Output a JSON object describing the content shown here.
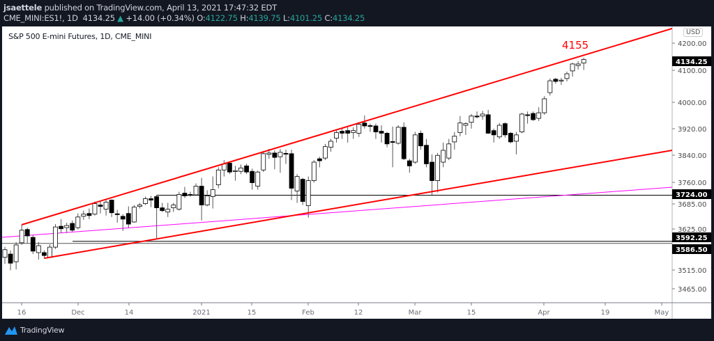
{
  "header": {
    "author": "jsaettele",
    "published": "published on TradingView.com, April 13, 2021 17:47:32 EDT",
    "symbol": "CME_MINI:ES1!, 1D",
    "last": "4134.25",
    "change": "+14.00 (+0.34%)",
    "o_label": "O:",
    "o": "4122.75",
    "h_label": "H:",
    "h": "4139.75",
    "l_label": "L:",
    "l": "4101.25",
    "c_label": "C:",
    "c": "4134.25",
    "change_icon": "triangle-up-icon"
  },
  "chart_title": "S&P 500 E-mini Futures, 1D, CME_MINI",
  "currency": "USD",
  "annotation": "4155",
  "colors": {
    "up_body": "#ffffff",
    "down_body": "#000000",
    "trendline": "#ff0000",
    "magenta_line": "#ff00ff",
    "ohlc_text": "#26a69a",
    "header_bg": "#131722"
  },
  "footer": {
    "brand": "TradingView"
  },
  "chart_data": {
    "type": "candlestick",
    "scale": "log",
    "grid": false,
    "x_ticks": [
      "16",
      "Dec",
      "14",
      "2021",
      "15",
      "Feb",
      "12",
      "Mar",
      "15",
      "Apr",
      "19",
      "May"
    ],
    "y_ticks": [
      "4200.00",
      "4100.00",
      "4000.00",
      "3920.00",
      "3840.00",
      "3760.00",
      "3685.00",
      "3625.00",
      "3515.00",
      "3465.00"
    ],
    "price_labels": [
      "4134.25",
      "3724.00",
      "3592.25",
      "3586.50"
    ],
    "horizontal_levels": [
      3724.0,
      3592.25,
      3586.5
    ],
    "candles_ohlc": [
      [
        3550,
        3579,
        3532,
        3571
      ],
      [
        3559,
        3569,
        3515,
        3534
      ],
      [
        3538,
        3592,
        3517,
        3584
      ],
      [
        3590,
        3640,
        3584,
        3625
      ],
      [
        3627,
        3632,
        3588,
        3609
      ],
      [
        3605,
        3611,
        3559,
        3567
      ],
      [
        3563,
        3592,
        3544,
        3582
      ],
      [
        3563,
        3569,
        3546,
        3555
      ],
      [
        3550,
        3586,
        3548,
        3578
      ],
      [
        3578,
        3642,
        3573,
        3634
      ],
      [
        3636,
        3656,
        3617,
        3629
      ],
      [
        3632,
        3646,
        3617,
        3638
      ],
      [
        3644,
        3652,
        3621,
        3625
      ],
      [
        3632,
        3672,
        3627,
        3662
      ],
      [
        3664,
        3680,
        3654,
        3670
      ],
      [
        3672,
        3686,
        3656,
        3666
      ],
      [
        3670,
        3706,
        3666,
        3700
      ],
      [
        3696,
        3706,
        3672,
        3692
      ],
      [
        3684,
        3710,
        3666,
        3704
      ],
      [
        3710,
        3712,
        3662,
        3674
      ],
      [
        3671,
        3682,
        3646,
        3669
      ],
      [
        3664,
        3670,
        3623,
        3656
      ],
      [
        3672,
        3692,
        3632,
        3642
      ],
      [
        3648,
        3696,
        3646,
        3690
      ],
      [
        3692,
        3702,
        3686,
        3696
      ],
      [
        3700,
        3720,
        3696,
        3714
      ],
      [
        3714,
        3722,
        3690,
        3710
      ],
      [
        3720,
        3725,
        3601,
        3688
      ],
      [
        3688,
        3702,
        3676,
        3680
      ],
      [
        3676,
        3702,
        3662,
        3684
      ],
      [
        3688,
        3702,
        3676,
        3696
      ],
      [
        3684,
        3734,
        3680,
        3726
      ],
      [
        3730,
        3748,
        3716,
        3722
      ],
      [
        3726,
        3734,
        3720,
        3725
      ],
      [
        3725,
        3758,
        3722,
        3750
      ],
      [
        3750,
        3774,
        3652,
        3696
      ],
      [
        3696,
        3738,
        3692,
        3722
      ],
      [
        3720,
        3778,
        3686,
        3740
      ],
      [
        3754,
        3805,
        3744,
        3797
      ],
      [
        3797,
        3826,
        3778,
        3815
      ],
      [
        3817,
        3822,
        3785,
        3791
      ],
      [
        3794,
        3809,
        3766,
        3795
      ],
      [
        3793,
        3813,
        3785,
        3803
      ],
      [
        3809,
        3815,
        3785,
        3791
      ],
      [
        3793,
        3801,
        3740,
        3760
      ],
      [
        3750,
        3795,
        3740,
        3791
      ],
      [
        3797,
        3853,
        3791,
        3845
      ],
      [
        3843,
        3859,
        3830,
        3847
      ],
      [
        3847,
        3855,
        3799,
        3834
      ],
      [
        3836,
        3859,
        3789,
        3849
      ],
      [
        3846,
        3857,
        3815,
        3844
      ],
      [
        3845,
        3857,
        3710,
        3744
      ],
      [
        3736,
        3785,
        3702,
        3778
      ],
      [
        3770,
        3774,
        3696,
        3706
      ],
      [
        3694,
        3778,
        3660,
        3766
      ],
      [
        3766,
        3826,
        3760,
        3820
      ],
      [
        3830,
        3836,
        3805,
        3824
      ],
      [
        3832,
        3874,
        3826,
        3866
      ],
      [
        3864,
        3889,
        3851,
        3882
      ],
      [
        3891,
        3914,
        3878,
        3908
      ],
      [
        3912,
        3920,
        3889,
        3906
      ],
      [
        3914,
        3924,
        3878,
        3906
      ],
      [
        3908,
        3924,
        3889,
        3914
      ],
      [
        3906,
        3939,
        3895,
        3933
      ],
      [
        3937,
        3960,
        3920,
        3928
      ],
      [
        3929,
        3935,
        3910,
        3928
      ],
      [
        3928,
        3935,
        3889,
        3910
      ],
      [
        3912,
        3930,
        3878,
        3906
      ],
      [
        3906,
        3910,
        3864,
        3874
      ],
      [
        3881,
        3926,
        3805,
        3880
      ],
      [
        3876,
        3930,
        3872,
        3924
      ],
      [
        3924,
        3939,
        3826,
        3830
      ],
      [
        3824,
        3830,
        3789,
        3809
      ],
      [
        3820,
        3910,
        3815,
        3901
      ],
      [
        3906,
        3914,
        3857,
        3868
      ],
      [
        3870,
        3889,
        3805,
        3815
      ],
      [
        3820,
        3843,
        3722,
        3766
      ],
      [
        3766,
        3847,
        3732,
        3840
      ],
      [
        3820,
        3878,
        3805,
        3855
      ],
      [
        3832,
        3889,
        3826,
        3874
      ],
      [
        3880,
        3910,
        3857,
        3897
      ],
      [
        3908,
        3958,
        3897,
        3937
      ],
      [
        3930,
        3939,
        3901,
        3935
      ],
      [
        3939,
        3964,
        3920,
        3958
      ],
      [
        3958,
        3972,
        3951,
        3956
      ],
      [
        3958,
        3974,
        3947,
        3964
      ],
      [
        3962,
        3977,
        3904,
        3906
      ],
      [
        3914,
        3920,
        3878,
        3901
      ],
      [
        3895,
        3937,
        3889,
        3930
      ],
      [
        3935,
        3939,
        3893,
        3901
      ],
      [
        3906,
        3910,
        3876,
        3880
      ],
      [
        3882,
        3910,
        3843,
        3901
      ],
      [
        3910,
        3968,
        3906,
        3964
      ],
      [
        3962,
        3972,
        3935,
        3960
      ],
      [
        3966,
        3972,
        3943,
        3947
      ],
      [
        3951,
        3985,
        3943,
        3968
      ],
      [
        3968,
        4019,
        3962,
        4011
      ],
      [
        4030,
        4074,
        4021,
        4067
      ],
      [
        4072,
        4076,
        4058,
        4065
      ],
      [
        4068,
        4076,
        4054,
        4069
      ],
      [
        4074,
        4096,
        4065,
        4089
      ],
      [
        4098,
        4124,
        4080,
        4120
      ],
      [
        4115,
        4129,
        4102,
        4120
      ],
      [
        4122.75,
        4139.75,
        4101.25,
        4134.25
      ]
    ]
  }
}
